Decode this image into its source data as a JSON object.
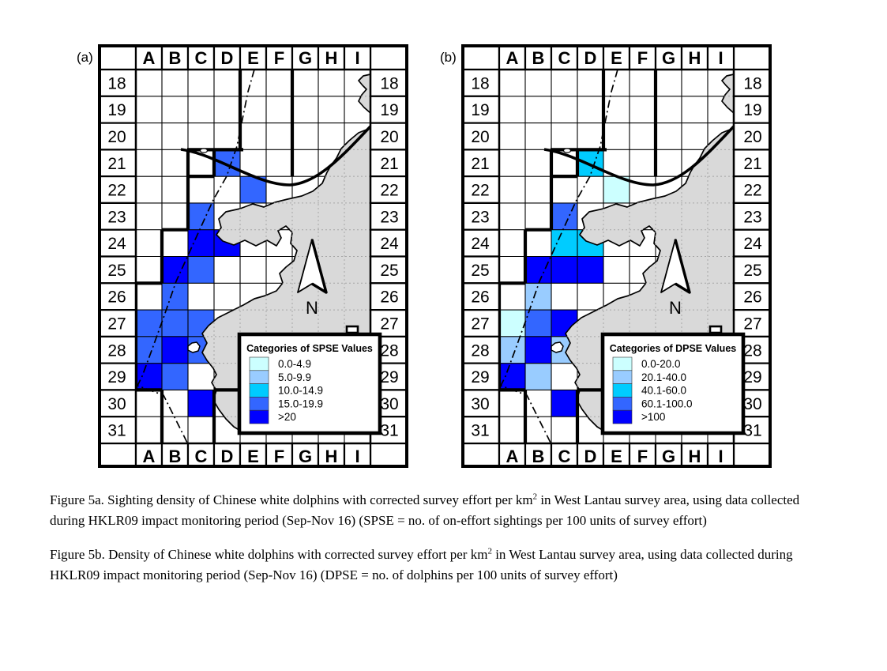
{
  "grid": {
    "column_headers": [
      "A",
      "B",
      "C",
      "D",
      "E",
      "F",
      "G",
      "H",
      "I"
    ],
    "row_labels": [
      "18",
      "19",
      "20",
      "21",
      "22",
      "23",
      "24",
      "25",
      "26",
      "27",
      "28",
      "29",
      "30",
      "31"
    ]
  },
  "palette": [
    "#ccffff",
    "#99ccff",
    "#00ccff",
    "#3366ff",
    "#0000ff"
  ],
  "land_color": "#d9d9d9",
  "north_label": "N",
  "maps": [
    {
      "id": "map-a",
      "panel_label": "(a)",
      "legend": {
        "title": "Categories of SPSE Values",
        "entries": [
          "0.0-4.9",
          "5.0-9.9",
          "10.0-14.9",
          "15.0-19.9",
          ">20"
        ]
      },
      "cells": [
        {
          "col": "D",
          "row": 21,
          "level": 3
        },
        {
          "col": "E",
          "row": 22,
          "level": 3
        },
        {
          "col": "C",
          "row": 23,
          "level": 3
        },
        {
          "col": "C",
          "row": 24,
          "level": 4
        },
        {
          "col": "D",
          "row": 24,
          "level": 4
        },
        {
          "col": "B",
          "row": 25,
          "level": 4
        },
        {
          "col": "C",
          "row": 25,
          "level": 3
        },
        {
          "col": "B",
          "row": 26,
          "level": 3
        },
        {
          "col": "A",
          "row": 27,
          "level": 3
        },
        {
          "col": "B",
          "row": 27,
          "level": 3
        },
        {
          "col": "C",
          "row": 27,
          "level": 3
        },
        {
          "col": "A",
          "row": 28,
          "level": 3
        },
        {
          "col": "B",
          "row": 28,
          "level": 4
        },
        {
          "col": "C",
          "row": 28,
          "level": 3
        },
        {
          "col": "A",
          "row": 29,
          "level": 4
        },
        {
          "col": "B",
          "row": 29,
          "level": 3
        },
        {
          "col": "C",
          "row": 30,
          "level": 4
        }
      ]
    },
    {
      "id": "map-b",
      "panel_label": "(b)",
      "legend": {
        "title": "Categories of DPSE Values",
        "entries": [
          "0.0-20.0",
          "20.1-40.0",
          "40.1-60.0",
          "60.1-100.0",
          ">100"
        ]
      },
      "cells": [
        {
          "col": "D",
          "row": 21,
          "level": 2
        },
        {
          "col": "E",
          "row": 22,
          "level": 0
        },
        {
          "col": "C",
          "row": 23,
          "level": 3
        },
        {
          "col": "C",
          "row": 24,
          "level": 2
        },
        {
          "col": "D",
          "row": 24,
          "level": 2
        },
        {
          "col": "B",
          "row": 25,
          "level": 4
        },
        {
          "col": "C",
          "row": 25,
          "level": 4
        },
        {
          "col": "D",
          "row": 25,
          "level": 4
        },
        {
          "col": "B",
          "row": 26,
          "level": 1
        },
        {
          "col": "A",
          "row": 27,
          "level": 0
        },
        {
          "col": "B",
          "row": 27,
          "level": 3
        },
        {
          "col": "C",
          "row": 27,
          "level": 4
        },
        {
          "col": "A",
          "row": 28,
          "level": 1
        },
        {
          "col": "B",
          "row": 28,
          "level": 4
        },
        {
          "col": "C",
          "row": 28,
          "level": 1
        },
        {
          "col": "A",
          "row": 29,
          "level": 4
        },
        {
          "col": "B",
          "row": 29,
          "level": 1
        },
        {
          "col": "C",
          "row": 30,
          "level": 4
        }
      ]
    }
  ],
  "captions": [
    {
      "before": "Figure 5a.  Sighting density of Chinese white dolphins with corrected survey effort per km",
      "sup": "2",
      "after": " in West Lantau survey area, using data collected during HKLR09 impact monitoring period (Sep-Nov 16) (SPSE = no. of on-effort sightings per 100 units of survey effort)"
    },
    {
      "before": "Figure 5b.  Density of Chinese white dolphins with corrected survey effort per km",
      "sup": "2",
      "after": " in West Lantau survey area, using data collected during HKLR09 impact monitoring period (Sep-Nov 16) (DPSE = no. of dolphins per 100 units of survey effort)"
    }
  ]
}
